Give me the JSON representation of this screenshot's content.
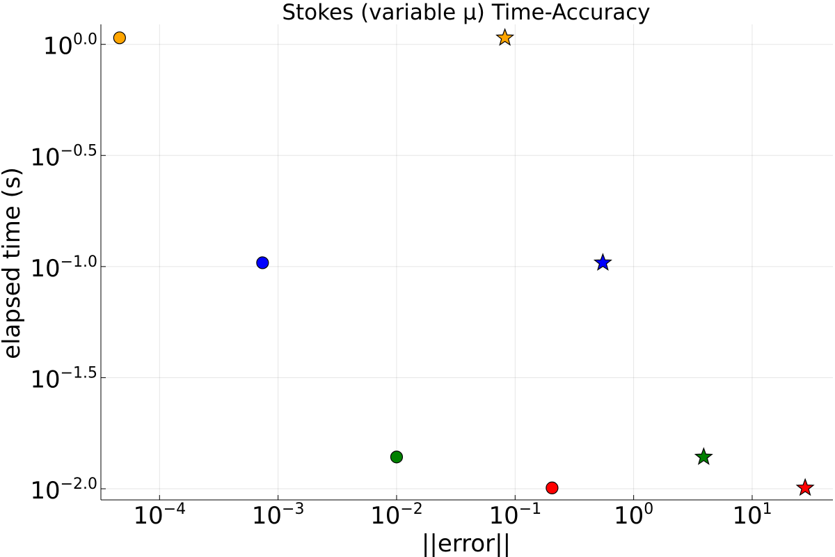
{
  "chart_data": {
    "type": "scatter",
    "title": "Stokes (variable μ) Time-Accuracy",
    "xlabel": "||error||",
    "ylabel": "elapsed time (s)",
    "x_scale": "log10",
    "y_scale": "log10",
    "xlim": [
      3.2e-05,
      48
    ],
    "ylim": [
      0.00891,
      1.23
    ],
    "x_ticks": [
      {
        "value": 0.0001,
        "base": "10",
        "exp": "−4"
      },
      {
        "value": 0.001,
        "base": "10",
        "exp": "−3"
      },
      {
        "value": 0.01,
        "base": "10",
        "exp": "−2"
      },
      {
        "value": 0.1,
        "base": "10",
        "exp": "−1"
      },
      {
        "value": 1,
        "base": "10",
        "exp": "0"
      },
      {
        "value": 10,
        "base": "10",
        "exp": "1"
      }
    ],
    "y_ticks": [
      {
        "value": 1.0,
        "base": "10",
        "exp": "0.0"
      },
      {
        "value": 0.31623,
        "base": "10",
        "exp": "−0.5"
      },
      {
        "value": 0.1,
        "base": "10",
        "exp": "−1.0"
      },
      {
        "value": 0.031623,
        "base": "10",
        "exp": "−1.5"
      },
      {
        "value": 0.01,
        "base": "10",
        "exp": "−2.0"
      }
    ],
    "grid": true,
    "legend": "none",
    "points": [
      {
        "x": 4.6e-05,
        "y": 1.07,
        "color": "#FFA500",
        "marker": "circle"
      },
      {
        "x": 0.00074,
        "y": 0.104,
        "color": "#0000FF",
        "marker": "circle"
      },
      {
        "x": 0.01,
        "y": 0.0139,
        "color": "#008000",
        "marker": "circle"
      },
      {
        "x": 0.205,
        "y": 0.01009,
        "color": "#FF0000",
        "marker": "circle"
      },
      {
        "x": 0.082,
        "y": 1.07,
        "color": "#FFA500",
        "marker": "star"
      },
      {
        "x": 0.55,
        "y": 0.104,
        "color": "#0000FF",
        "marker": "star"
      },
      {
        "x": 3.9,
        "y": 0.0139,
        "color": "#008000",
        "marker": "star"
      },
      {
        "x": 28,
        "y": 0.01009,
        "color": "#FF0000",
        "marker": "star"
      }
    ]
  }
}
